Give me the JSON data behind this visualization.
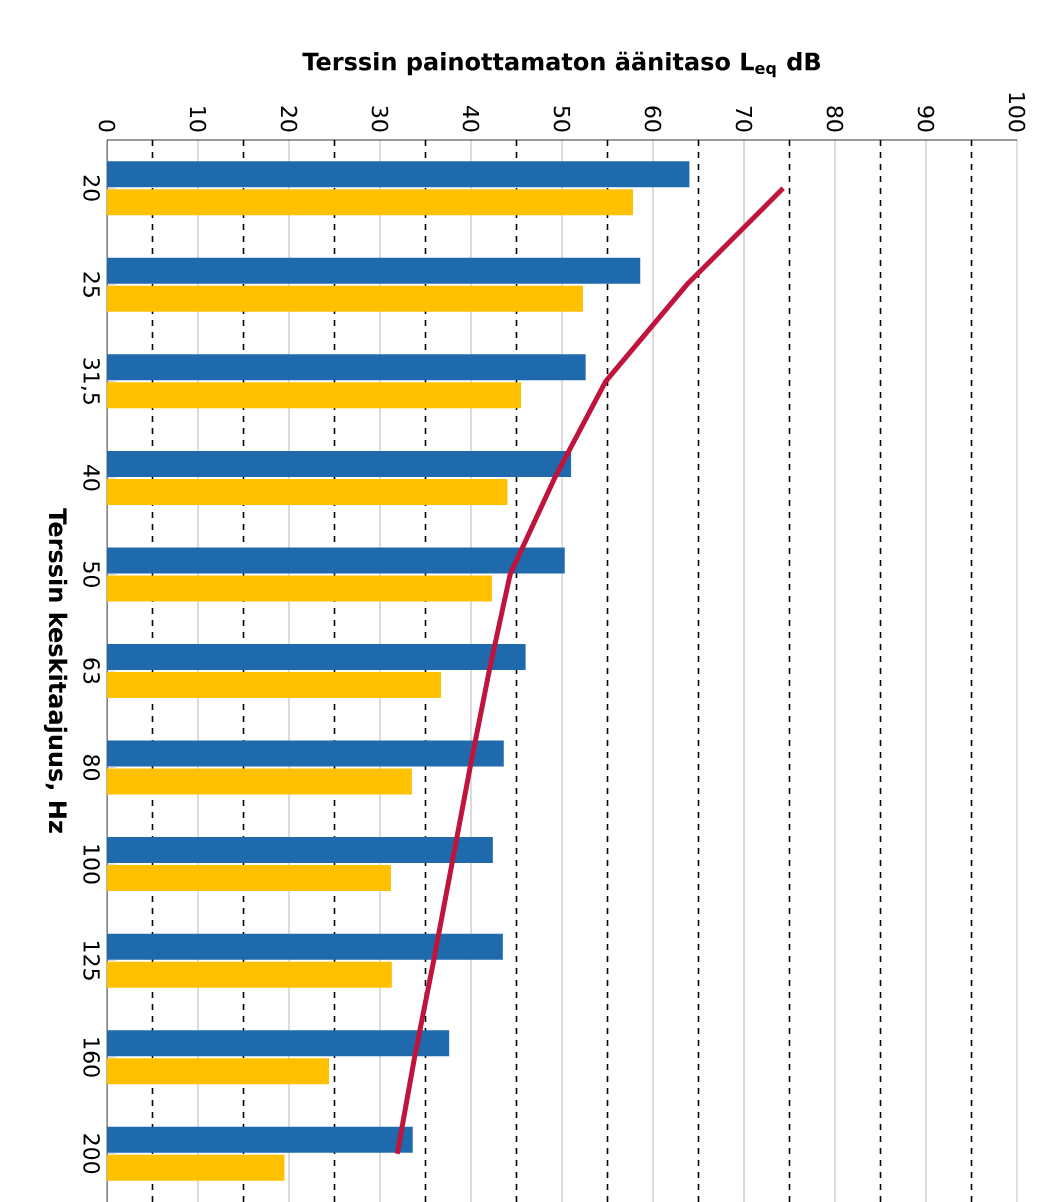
{
  "chart_data": {
    "type": "bar",
    "orientation": "horizontal",
    "xlabel": "Terssin painottamaton äänitaso L$_{eq}$ dB",
    "ylabel": "Terssin keskitaajuus, Hz",
    "categories": [
      "20",
      "25",
      "31,5",
      "40",
      "50",
      "63",
      "80",
      "100",
      "125",
      "160",
      "200"
    ],
    "series": [
      {
        "color": "#1f6aad",
        "values": [
          64,
          58.6,
          52.6,
          51,
          50.3,
          46,
          43.6,
          42.4,
          43.5,
          37.6,
          33.6
        ]
      },
      {
        "color": "#ffc000",
        "values": [
          57.8,
          52.3,
          45.5,
          44,
          42.3,
          36.7,
          33.5,
          31.2,
          31.3,
          24.4,
          19.5
        ]
      },
      {
        "type": "line",
        "color": "#c0143c",
        "values": [
          74.3,
          63.7,
          54.8,
          49.2,
          44.3,
          42,
          39.9,
          37.9,
          35.9,
          33.8,
          31.9
        ]
      }
    ],
    "xlim": [
      0,
      100
    ],
    "xticks": [
      0,
      10,
      20,
      30,
      40,
      50,
      60,
      70,
      80,
      90,
      100
    ],
    "grid": "x"
  }
}
